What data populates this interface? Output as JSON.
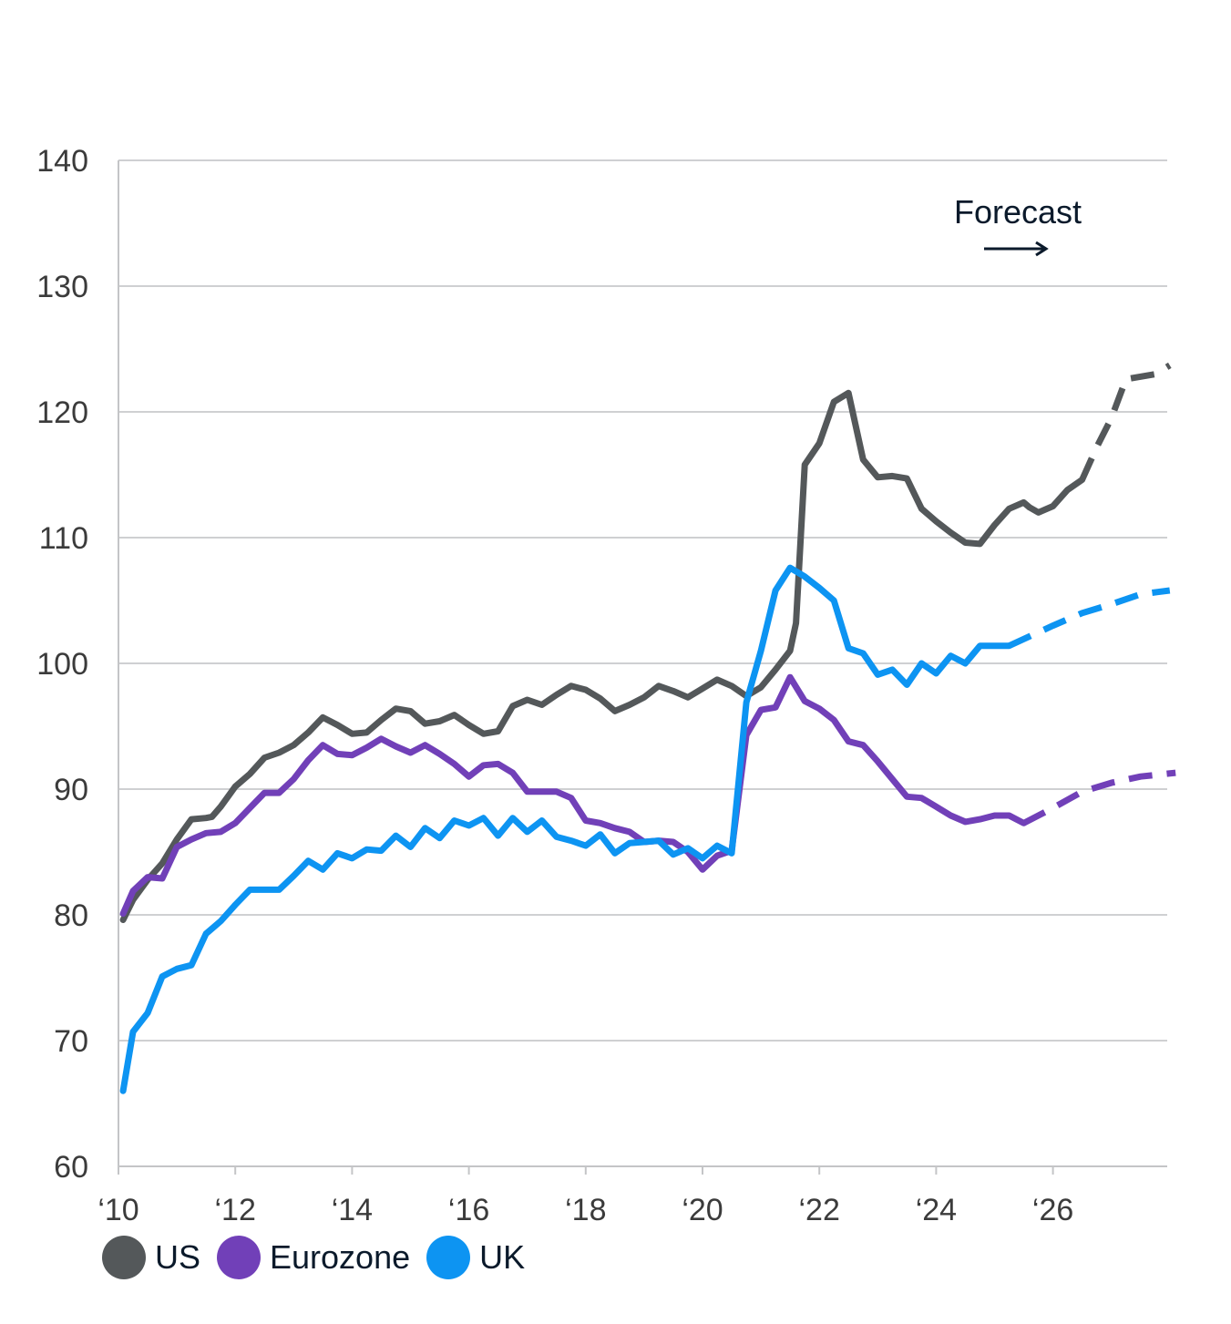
{
  "chart_data": {
    "type": "line",
    "xlim": [
      2010,
      2028
    ],
    "ylim": [
      60,
      140
    ],
    "yticks": [
      60,
      70,
      80,
      90,
      100,
      110,
      120,
      130,
      140
    ],
    "xticks": [
      {
        "value": 2010,
        "label": "‘10"
      },
      {
        "value": 2012,
        "label": "‘12"
      },
      {
        "value": 2014,
        "label": "‘14"
      },
      {
        "value": 2016,
        "label": "‘16"
      },
      {
        "value": 2018,
        "label": "‘18"
      },
      {
        "value": 2020,
        "label": "‘20"
      },
      {
        "value": 2022,
        "label": "‘22"
      },
      {
        "value": 2024,
        "label": "‘24"
      },
      {
        "value": 2026,
        "label": "‘26"
      }
    ],
    "grid": true,
    "annotation": "Forecast",
    "forecast_start": 2025.0,
    "series": [
      {
        "name": "US",
        "color": "#54585a",
        "points": [
          [
            2010.08,
            79.6
          ],
          [
            2010.25,
            81.2
          ],
          [
            2010.5,
            82.8
          ],
          [
            2010.75,
            84.1
          ],
          [
            2011.0,
            86.0
          ],
          [
            2011.25,
            87.6
          ],
          [
            2011.5,
            87.7
          ],
          [
            2011.6,
            87.8
          ],
          [
            2011.75,
            88.6
          ],
          [
            2012.0,
            90.2
          ],
          [
            2012.25,
            91.2
          ],
          [
            2012.5,
            92.5
          ],
          [
            2012.75,
            92.9
          ],
          [
            2013.0,
            93.5
          ],
          [
            2013.25,
            94.5
          ],
          [
            2013.5,
            95.7
          ],
          [
            2013.75,
            95.1
          ],
          [
            2014.0,
            94.4
          ],
          [
            2014.25,
            94.5
          ],
          [
            2014.5,
            95.5
          ],
          [
            2014.75,
            96.4
          ],
          [
            2015.0,
            96.2
          ],
          [
            2015.25,
            95.2
          ],
          [
            2015.5,
            95.4
          ],
          [
            2015.75,
            95.9
          ],
          [
            2016.0,
            95.1
          ],
          [
            2016.25,
            94.4
          ],
          [
            2016.5,
            94.6
          ],
          [
            2016.75,
            96.6
          ],
          [
            2017.0,
            97.1
          ],
          [
            2017.25,
            96.7
          ],
          [
            2017.5,
            97.5
          ],
          [
            2017.75,
            98.2
          ],
          [
            2018.0,
            97.9
          ],
          [
            2018.25,
            97.2
          ],
          [
            2018.5,
            96.2
          ],
          [
            2018.75,
            96.7
          ],
          [
            2019.0,
            97.3
          ],
          [
            2019.25,
            98.2
          ],
          [
            2019.5,
            97.8
          ],
          [
            2019.75,
            97.3
          ],
          [
            2020.0,
            98.0
          ],
          [
            2020.25,
            98.7
          ],
          [
            2020.5,
            98.2
          ],
          [
            2020.75,
            97.4
          ],
          [
            2021.0,
            98.1
          ],
          [
            2021.25,
            99.5
          ],
          [
            2021.5,
            101.0
          ],
          [
            2021.6,
            103.2
          ],
          [
            2021.75,
            115.8
          ],
          [
            2022.0,
            117.5
          ],
          [
            2022.25,
            120.8
          ],
          [
            2022.5,
            121.5
          ],
          [
            2022.75,
            116.2
          ],
          [
            2023.0,
            114.8
          ],
          [
            2023.25,
            114.9
          ],
          [
            2023.5,
            114.7
          ],
          [
            2023.75,
            112.3
          ],
          [
            2024.0,
            111.3
          ],
          [
            2024.25,
            110.4
          ],
          [
            2024.5,
            109.6
          ],
          [
            2024.75,
            109.5
          ],
          [
            2025.0,
            111.0
          ],
          [
            2025.25,
            112.3
          ],
          [
            2025.5,
            112.8
          ],
          [
            2025.6,
            112.4
          ],
          [
            2025.75,
            112.0
          ],
          [
            2026.0,
            112.5
          ],
          [
            2026.25,
            113.8
          ],
          [
            2026.5,
            114.6
          ]
        ],
        "forecast": [
          [
            2026.5,
            114.6
          ],
          [
            2026.75,
            117.2
          ],
          [
            2027.0,
            119.5
          ],
          [
            2027.25,
            122.6
          ],
          [
            2027.75,
            123.0
          ],
          [
            2028.0,
            123.7
          ]
        ]
      },
      {
        "name": "Eurozone",
        "color": "#7140b8",
        "points": [
          [
            2010.08,
            80.1
          ],
          [
            2010.25,
            81.9
          ],
          [
            2010.5,
            83.0
          ],
          [
            2010.75,
            82.9
          ],
          [
            2011.0,
            85.4
          ],
          [
            2011.25,
            86.0
          ],
          [
            2011.5,
            86.5
          ],
          [
            2011.75,
            86.6
          ],
          [
            2012.0,
            87.3
          ],
          [
            2012.25,
            88.5
          ],
          [
            2012.5,
            89.7
          ],
          [
            2012.75,
            89.7
          ],
          [
            2013.0,
            90.8
          ],
          [
            2013.25,
            92.3
          ],
          [
            2013.5,
            93.5
          ],
          [
            2013.75,
            92.8
          ],
          [
            2014.0,
            92.7
          ],
          [
            2014.25,
            93.3
          ],
          [
            2014.5,
            94.0
          ],
          [
            2014.75,
            93.4
          ],
          [
            2015.0,
            92.9
          ],
          [
            2015.25,
            93.5
          ],
          [
            2015.5,
            92.8
          ],
          [
            2015.75,
            92.0
          ],
          [
            2016.0,
            91.0
          ],
          [
            2016.25,
            91.9
          ],
          [
            2016.5,
            92.0
          ],
          [
            2016.75,
            91.3
          ],
          [
            2017.0,
            89.8
          ],
          [
            2017.25,
            89.8
          ],
          [
            2017.5,
            89.8
          ],
          [
            2017.75,
            89.3
          ],
          [
            2018.0,
            87.5
          ],
          [
            2018.25,
            87.3
          ],
          [
            2018.5,
            86.9
          ],
          [
            2018.75,
            86.6
          ],
          [
            2019.0,
            85.8
          ],
          [
            2019.25,
            85.9
          ],
          [
            2019.5,
            85.8
          ],
          [
            2019.75,
            85.0
          ],
          [
            2020.0,
            83.6
          ],
          [
            2020.25,
            84.7
          ],
          [
            2020.5,
            85.1
          ],
          [
            2020.75,
            94.3
          ],
          [
            2021.0,
            96.3
          ],
          [
            2021.25,
            96.5
          ],
          [
            2021.5,
            98.9
          ],
          [
            2021.75,
            97.0
          ],
          [
            2022.0,
            96.4
          ],
          [
            2022.25,
            95.5
          ],
          [
            2022.5,
            93.8
          ],
          [
            2022.75,
            93.5
          ],
          [
            2023.0,
            92.2
          ],
          [
            2023.25,
            90.8
          ],
          [
            2023.5,
            89.4
          ],
          [
            2023.75,
            89.3
          ],
          [
            2024.0,
            88.6
          ],
          [
            2024.25,
            87.9
          ],
          [
            2024.5,
            87.4
          ],
          [
            2024.75,
            87.6
          ],
          [
            2025.0,
            87.9
          ],
          [
            2025.25,
            87.9
          ],
          [
            2025.5,
            87.3
          ]
        ],
        "forecast": [
          [
            2025.5,
            87.3
          ],
          [
            2026.0,
            88.5
          ],
          [
            2026.5,
            89.8
          ],
          [
            2027.0,
            90.5
          ],
          [
            2027.5,
            91.0
          ],
          [
            2028.1,
            91.3
          ]
        ]
      },
      {
        "name": "UK",
        "color": "#0d94f2",
        "points": [
          [
            2010.08,
            66.0
          ],
          [
            2010.25,
            70.7
          ],
          [
            2010.5,
            72.2
          ],
          [
            2010.75,
            75.1
          ],
          [
            2011.0,
            75.7
          ],
          [
            2011.25,
            76.0
          ],
          [
            2011.5,
            78.5
          ],
          [
            2011.75,
            79.5
          ],
          [
            2012.0,
            80.8
          ],
          [
            2012.25,
            82.0
          ],
          [
            2012.5,
            82.0
          ],
          [
            2012.75,
            82.0
          ],
          [
            2013.0,
            83.1
          ],
          [
            2013.25,
            84.3
          ],
          [
            2013.5,
            83.6
          ],
          [
            2013.75,
            84.9
          ],
          [
            2014.0,
            84.5
          ],
          [
            2014.25,
            85.2
          ],
          [
            2014.5,
            85.1
          ],
          [
            2014.75,
            86.3
          ],
          [
            2015.0,
            85.4
          ],
          [
            2015.25,
            86.9
          ],
          [
            2015.5,
            86.1
          ],
          [
            2015.75,
            87.5
          ],
          [
            2016.0,
            87.1
          ],
          [
            2016.25,
            87.7
          ],
          [
            2016.5,
            86.3
          ],
          [
            2016.75,
            87.7
          ],
          [
            2017.0,
            86.6
          ],
          [
            2017.25,
            87.5
          ],
          [
            2017.5,
            86.2
          ],
          [
            2017.75,
            85.9
          ],
          [
            2018.0,
            85.5
          ],
          [
            2018.25,
            86.4
          ],
          [
            2018.5,
            84.9
          ],
          [
            2018.75,
            85.7
          ],
          [
            2019.0,
            85.8
          ],
          [
            2019.25,
            85.9
          ],
          [
            2019.5,
            84.8
          ],
          [
            2019.75,
            85.3
          ],
          [
            2020.0,
            84.5
          ],
          [
            2020.25,
            85.5
          ],
          [
            2020.5,
            84.9
          ],
          [
            2020.75,
            96.9
          ],
          [
            2021.0,
            101.0
          ],
          [
            2021.25,
            105.8
          ],
          [
            2021.5,
            107.6
          ],
          [
            2021.75,
            106.9
          ],
          [
            2022.0,
            106.0
          ],
          [
            2022.25,
            105.0
          ],
          [
            2022.5,
            101.2
          ],
          [
            2022.75,
            100.8
          ],
          [
            2023.0,
            99.1
          ],
          [
            2023.25,
            99.5
          ],
          [
            2023.5,
            98.3
          ],
          [
            2023.75,
            100.0
          ],
          [
            2024.0,
            99.2
          ],
          [
            2024.25,
            100.6
          ],
          [
            2024.5,
            100.0
          ],
          [
            2024.75,
            101.4
          ],
          [
            2025.0,
            101.4
          ],
          [
            2025.25,
            101.4
          ]
        ],
        "forecast": [
          [
            2025.25,
            101.4
          ],
          [
            2026.0,
            103.0
          ],
          [
            2026.5,
            104.0
          ],
          [
            2027.0,
            104.7
          ],
          [
            2027.5,
            105.5
          ],
          [
            2028.0,
            105.8
          ]
        ]
      }
    ]
  }
}
